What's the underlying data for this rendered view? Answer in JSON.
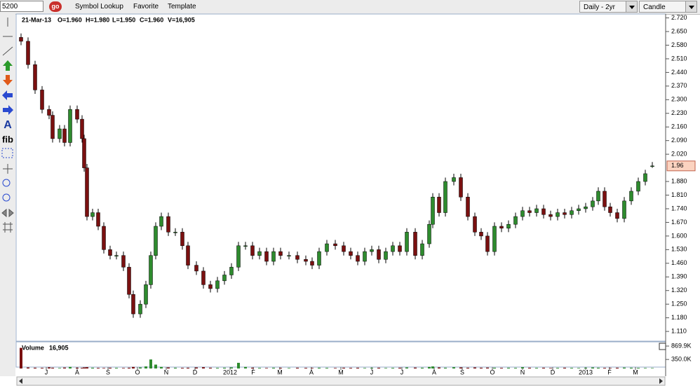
{
  "toolbar": {
    "symbol": "5200",
    "go": "go",
    "links": [
      "Symbol Lookup",
      "Favorite",
      "Template"
    ],
    "period": "Daily - 2yr",
    "style": "Candle"
  },
  "info": [
    "21-Mar-13",
    "O=1.960",
    "H=1.980",
    "L=1.950",
    "C=1.960",
    "V=16,905"
  ],
  "last_price": "1.96",
  "volume_title": "Volume",
  "volume_value": "16,905",
  "chart_data": {
    "type": "candlestick",
    "x": [
      30,
      40,
      50,
      60,
      70,
      75,
      85,
      92,
      100,
      110,
      117,
      120,
      124,
      132,
      140,
      148,
      157,
      166,
      176,
      184,
      190,
      200,
      208,
      215,
      222,
      230,
      240,
      250,
      260,
      268,
      280,
      290,
      300,
      310,
      320,
      330,
      340,
      350,
      360,
      370,
      380,
      390,
      400,
      412,
      424,
      436,
      445,
      455,
      466,
      478,
      490,
      500,
      510,
      520,
      530,
      540,
      550,
      560,
      570,
      580,
      592,
      602,
      612,
      617,
      626,
      635,
      647,
      657,
      667,
      677,
      686,
      695,
      705,
      715,
      725,
      735,
      745,
      755,
      765,
      775,
      785,
      795,
      805,
      815,
      825,
      835,
      845,
      853,
      862,
      870,
      880,
      890,
      900,
      910,
      920,
      930
    ],
    "open": [
      2.62,
      2.6,
      2.48,
      2.35,
      2.25,
      2.22,
      2.1,
      2.15,
      2.08,
      2.25,
      2.2,
      2.1,
      1.95,
      1.7,
      1.72,
      1.65,
      1.53,
      1.5,
      1.5,
      1.44,
      1.3,
      1.2,
      1.25,
      1.35,
      1.5,
      1.65,
      1.7,
      1.62,
      1.62,
      1.55,
      1.45,
      1.42,
      1.35,
      1.33,
      1.37,
      1.4,
      1.44,
      1.55,
      1.55,
      1.5,
      1.52,
      1.47,
      1.52,
      1.5,
      1.5,
      1.48,
      1.47,
      1.45,
      1.52,
      1.56,
      1.55,
      1.52,
      1.5,
      1.47,
      1.52,
      1.53,
      1.48,
      1.52,
      1.55,
      1.52,
      1.62,
      1.5,
      1.56,
      1.66,
      1.8,
      1.72,
      1.88,
      1.9,
      1.8,
      1.7,
      1.62,
      1.6,
      1.52,
      1.65,
      1.64,
      1.66,
      1.7,
      1.73,
      1.72,
      1.74,
      1.71,
      1.7,
      1.72,
      1.71,
      1.73,
      1.74,
      1.75,
      1.78,
      1.83,
      1.75,
      1.72,
      1.69,
      1.78,
      1.83,
      1.88,
      1.96
    ],
    "high": [
      2.64,
      2.62,
      2.5,
      2.37,
      2.27,
      2.24,
      2.17,
      2.17,
      2.27,
      2.27,
      2.22,
      2.12,
      1.97,
      1.74,
      1.74,
      1.67,
      1.55,
      1.52,
      1.52,
      1.46,
      1.32,
      1.27,
      1.37,
      1.52,
      1.67,
      1.72,
      1.72,
      1.64,
      1.64,
      1.57,
      1.47,
      1.44,
      1.37,
      1.39,
      1.42,
      1.46,
      1.57,
      1.57,
      1.57,
      1.54,
      1.54,
      1.54,
      1.54,
      1.52,
      1.52,
      1.5,
      1.49,
      1.54,
      1.58,
      1.58,
      1.57,
      1.54,
      1.52,
      1.54,
      1.55,
      1.55,
      1.54,
      1.57,
      1.57,
      1.64,
      1.64,
      1.58,
      1.68,
      1.82,
      1.82,
      1.9,
      1.92,
      1.92,
      1.82,
      1.72,
      1.64,
      1.62,
      1.67,
      1.67,
      1.68,
      1.72,
      1.75,
      1.75,
      1.76,
      1.76,
      1.73,
      1.74,
      1.74,
      1.75,
      1.76,
      1.77,
      1.8,
      1.85,
      1.85,
      1.77,
      1.74,
      1.8,
      1.85,
      1.9,
      1.94,
      1.98
    ],
    "low": [
      2.58,
      2.46,
      2.33,
      2.23,
      2.2,
      2.08,
      2.08,
      2.06,
      2.06,
      2.18,
      2.08,
      1.93,
      1.68,
      1.68,
      1.63,
      1.51,
      1.48,
      1.48,
      1.42,
      1.28,
      1.18,
      1.18,
      1.23,
      1.33,
      1.48,
      1.63,
      1.6,
      1.6,
      1.53,
      1.43,
      1.4,
      1.33,
      1.31,
      1.31,
      1.35,
      1.38,
      1.42,
      1.53,
      1.48,
      1.48,
      1.45,
      1.45,
      1.48,
      1.48,
      1.46,
      1.45,
      1.43,
      1.43,
      1.5,
      1.53,
      1.5,
      1.48,
      1.45,
      1.45,
      1.5,
      1.46,
      1.46,
      1.5,
      1.5,
      1.5,
      1.48,
      1.48,
      1.54,
      1.64,
      1.7,
      1.7,
      1.86,
      1.78,
      1.68,
      1.6,
      1.58,
      1.5,
      1.5,
      1.62,
      1.62,
      1.64,
      1.68,
      1.7,
      1.7,
      1.69,
      1.68,
      1.68,
      1.69,
      1.69,
      1.71,
      1.72,
      1.73,
      1.76,
      1.73,
      1.7,
      1.67,
      1.67,
      1.76,
      1.81,
      1.86,
      1.95
    ],
    "close": [
      2.6,
      2.48,
      2.35,
      2.25,
      2.22,
      2.1,
      2.15,
      2.08,
      2.25,
      2.2,
      2.1,
      1.95,
      1.7,
      1.72,
      1.65,
      1.53,
      1.5,
      1.5,
      1.44,
      1.3,
      1.2,
      1.25,
      1.35,
      1.5,
      1.65,
      1.7,
      1.62,
      1.62,
      1.55,
      1.45,
      1.42,
      1.35,
      1.33,
      1.37,
      1.4,
      1.44,
      1.55,
      1.55,
      1.5,
      1.52,
      1.47,
      1.52,
      1.5,
      1.5,
      1.48,
      1.47,
      1.45,
      1.52,
      1.56,
      1.55,
      1.52,
      1.5,
      1.47,
      1.52,
      1.53,
      1.48,
      1.52,
      1.55,
      1.52,
      1.62,
      1.5,
      1.56,
      1.66,
      1.8,
      1.72,
      1.88,
      1.9,
      1.8,
      1.7,
      1.62,
      1.6,
      1.52,
      1.65,
      1.64,
      1.66,
      1.7,
      1.73,
      1.72,
      1.74,
      1.71,
      1.7,
      1.72,
      1.71,
      1.73,
      1.74,
      1.75,
      1.78,
      1.83,
      1.75,
      1.72,
      1.69,
      1.78,
      1.83,
      1.88,
      1.92,
      1.96
    ],
    "volume": [
      800000,
      40000,
      30000,
      25000,
      45000,
      30000,
      20000,
      35000,
      60000,
      30000,
      25000,
      40000,
      50000,
      30000,
      25000,
      20000,
      30000,
      25000,
      20000,
      30000,
      60000,
      40000,
      80000,
      350000,
      150000,
      60000,
      40000,
      30000,
      25000,
      30000,
      40000,
      50000,
      30000,
      25000,
      30000,
      40000,
      220000,
      60000,
      30000,
      25000,
      20000,
      30000,
      25000,
      20000,
      30000,
      25000,
      20000,
      30000,
      25000,
      20000,
      30000,
      25000,
      30000,
      20000,
      25000,
      30000,
      20000,
      25000,
      30000,
      40000,
      35000,
      30000,
      60000,
      80000,
      40000,
      30000,
      50000,
      40000,
      30000,
      40000,
      30000,
      35000,
      30000,
      25000,
      30000,
      25000,
      50000,
      30000,
      25000,
      30000,
      20000,
      25000,
      30000,
      25000,
      20000,
      30000,
      40000,
      30000,
      25000,
      20000,
      30000,
      35000,
      30000,
      25000,
      20000,
      16905
    ],
    "up_color": "#2e8b2e",
    "down_color": "#7a1010",
    "xlim": [
      24,
      948
    ],
    "xticks": [
      {
        "value": 66,
        "label": "J"
      },
      {
        "value": 110,
        "label": "A"
      },
      {
        "value": 154,
        "label": "S"
      },
      {
        "value": 196,
        "label": "O"
      },
      {
        "value": 237,
        "label": "N"
      },
      {
        "value": 278,
        "label": "D"
      },
      {
        "value": 328,
        "label": "2012"
      },
      {
        "value": 361,
        "label": "F"
      },
      {
        "value": 399,
        "label": "M"
      },
      {
        "value": 444,
        "label": "A"
      },
      {
        "value": 486,
        "label": "M"
      },
      {
        "value": 530,
        "label": "J"
      },
      {
        "value": 573,
        "label": "J"
      },
      {
        "value": 619,
        "label": "A"
      },
      {
        "value": 659,
        "label": "S"
      },
      {
        "value": 702,
        "label": "O"
      },
      {
        "value": 745,
        "label": "N"
      },
      {
        "value": 788,
        "label": "D"
      },
      {
        "value": 835,
        "label": "2013"
      },
      {
        "value": 869,
        "label": "F"
      },
      {
        "value": 906,
        "label": "M"
      }
    ],
    "ylim": [
      1.06,
      2.74
    ],
    "yticks": [
      {
        "value": 2.72,
        "label": "2.720"
      },
      {
        "value": 2.65,
        "label": "2.650"
      },
      {
        "value": 2.58,
        "label": "2.580"
      },
      {
        "value": 2.51,
        "label": "2.510"
      },
      {
        "value": 2.44,
        "label": "2.440"
      },
      {
        "value": 2.37,
        "label": "2.370"
      },
      {
        "value": 2.3,
        "label": "2.300"
      },
      {
        "value": 2.23,
        "label": "2.230"
      },
      {
        "value": 2.16,
        "label": "2.160"
      },
      {
        "value": 2.09,
        "label": "2.090"
      },
      {
        "value": 2.02,
        "label": "2.020"
      },
      {
        "value": 1.88,
        "label": "1.880"
      },
      {
        "value": 1.81,
        "label": "1.810"
      },
      {
        "value": 1.74,
        "label": "1.740"
      },
      {
        "value": 1.67,
        "label": "1.670"
      },
      {
        "value": 1.6,
        "label": "1.600"
      },
      {
        "value": 1.53,
        "label": "1.530"
      },
      {
        "value": 1.46,
        "label": "1.460"
      },
      {
        "value": 1.39,
        "label": "1.390"
      },
      {
        "value": 1.32,
        "label": "1.320"
      },
      {
        "value": 1.25,
        "label": "1.250"
      },
      {
        "value": 1.18,
        "label": "1.180"
      },
      {
        "value": 1.11,
        "label": "1.110"
      }
    ],
    "y2lim": [
      0,
      869900
    ],
    "y2ticks": [
      {
        "value": 869900,
        "label": "869.9K"
      },
      {
        "value": 350000,
        "label": "350.0K"
      }
    ]
  }
}
